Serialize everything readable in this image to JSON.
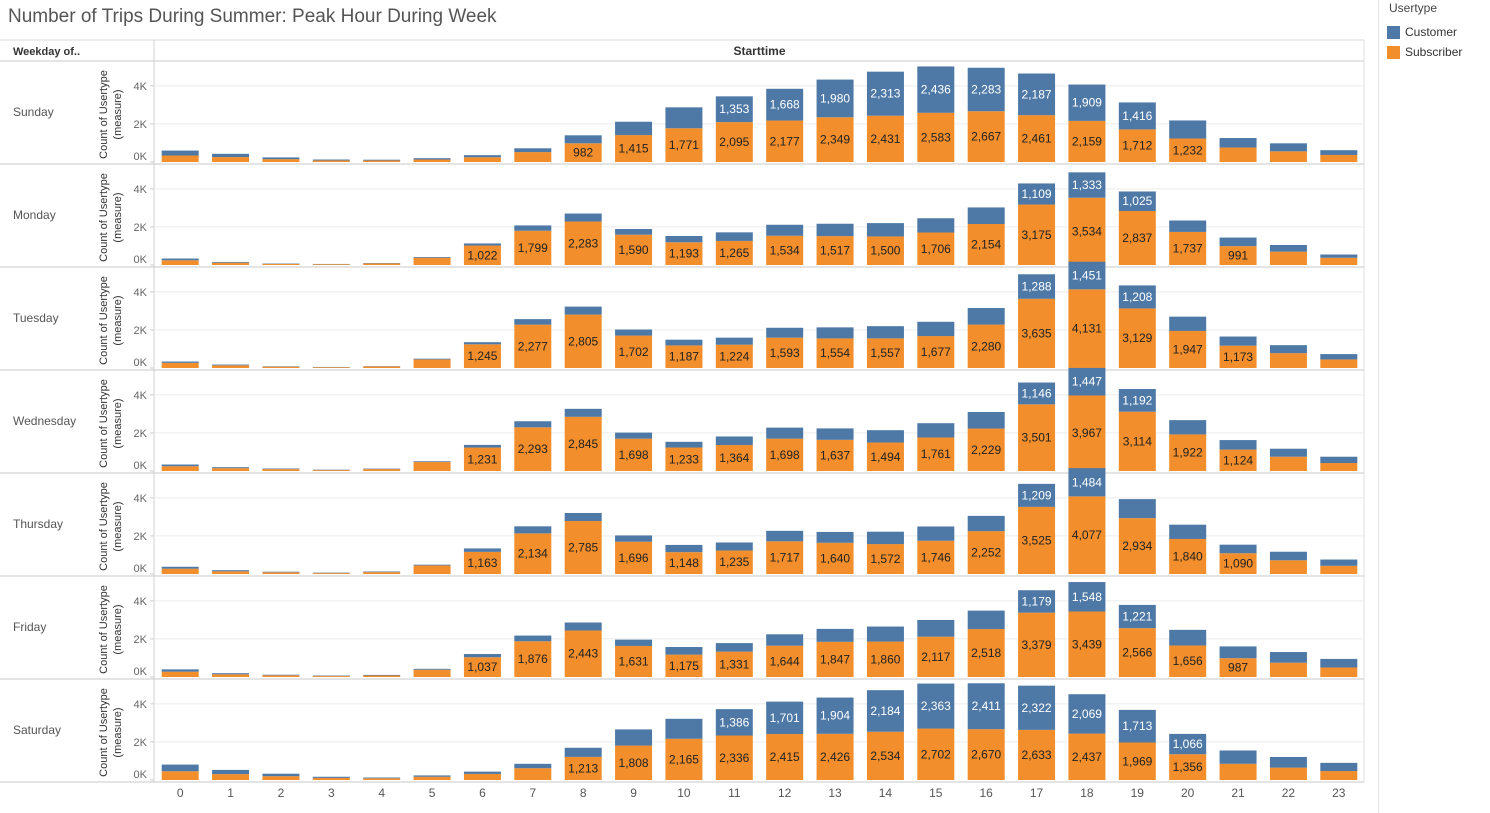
{
  "title": "Number of Trips During Summer: Peak Hour During Week",
  "legend": {
    "title": "Usertype",
    "items": [
      {
        "label": "Customer",
        "color": "#4e79a7"
      },
      {
        "label": "Subscriber",
        "color": "#f28e2b"
      }
    ]
  },
  "chart_data": {
    "type": "bar",
    "stacked": true,
    "row_header": "Weekday of..",
    "column_header": "Starttime",
    "ylabel": "Count of Usertype (measure)",
    "ylabel_lines": [
      "Count of Usertype",
      "(measure)"
    ],
    "y_ticks": [
      "0K",
      "2K",
      "4K"
    ],
    "ylim": [
      0,
      5200
    ],
    "categories": [
      "0",
      "1",
      "2",
      "3",
      "4",
      "5",
      "6",
      "7",
      "8",
      "9",
      "10",
      "11",
      "12",
      "13",
      "14",
      "15",
      "16",
      "17",
      "18",
      "19",
      "20",
      "21",
      "22",
      "23"
    ],
    "panels": [
      {
        "day": "Sunday",
        "series": [
          {
            "name": "Subscriber",
            "values": [
              340,
              260,
              150,
              80,
              80,
              130,
              250,
              520,
              982,
              1415,
              1771,
              2095,
              2177,
              2349,
              2431,
              2583,
              2667,
              2461,
              2159,
              1712,
              1232,
              760,
              560,
              370
            ]
          },
          {
            "name": "Customer",
            "values": [
              260,
              170,
              90,
              50,
              40,
              70,
              110,
              200,
              420,
              700,
              1100,
              1353,
              1668,
              1980,
              2313,
              2436,
              2283,
              2187,
              1909,
              1416,
              950,
              500,
              420,
              250
            ]
          }
        ],
        "labels": {
          "Subscriber": [
            "",
            "",
            "",
            "",
            "",
            "",
            "",
            "",
            "982",
            "1,415",
            "1,771",
            "2,095",
            "2,177",
            "2,349",
            "2,431",
            "2,583",
            "2,667",
            "2,461",
            "2,159",
            "1,712",
            "1,232",
            "",
            "",
            ""
          ],
          "Customer": [
            "",
            "",
            "",
            "",
            "",
            "",
            "",
            "",
            "",
            "",
            "",
            "1,353",
            "1,668",
            "1,980",
            "2,313",
            "2,436",
            "2,283",
            "2,187",
            "1,909",
            "1,416",
            "",
            "",
            "",
            ""
          ]
        }
      },
      {
        "day": "Monday",
        "series": [
          {
            "name": "Subscriber",
            "values": [
              250,
              120,
              60,
              40,
              80,
              380,
              1022,
              1799,
              2283,
              1590,
              1193,
              1265,
              1534,
              1517,
              1500,
              1706,
              2154,
              3175,
              3534,
              2837,
              1737,
              991,
              700,
              380
            ]
          },
          {
            "name": "Customer",
            "values": [
              90,
              40,
              20,
              15,
              20,
              40,
              110,
              280,
              420,
              300,
              330,
              450,
              580,
              650,
              700,
              750,
              870,
              1109,
              1333,
              1025,
              600,
              450,
              350,
              170
            ]
          }
        ],
        "labels": {
          "Subscriber": [
            "",
            "",
            "",
            "",
            "",
            "",
            "1,022",
            "1,799",
            "2,283",
            "1,590",
            "1,193",
            "1,265",
            "1,534",
            "1,517",
            "1,500",
            "1,706",
            "2,154",
            "3,175",
            "3,534",
            "2,837",
            "1,737",
            "991",
            "",
            ""
          ],
          "Customer": [
            "",
            "",
            "",
            "",
            "",
            "",
            "",
            "",
            "",
            "",
            "",
            "",
            "",
            "",
            "",
            "",
            "",
            "1,109",
            "1,333",
            "1,025",
            "",
            "",
            "",
            ""
          ]
        }
      },
      {
        "day": "Tuesday",
        "series": [
          {
            "name": "Subscriber",
            "values": [
              270,
              140,
              70,
              40,
              80,
              450,
              1245,
              2277,
              2805,
              1702,
              1187,
              1224,
              1593,
              1554,
              1557,
              1677,
              2280,
              3635,
              4131,
              3129,
              1947,
              1173,
              780,
              450
            ]
          },
          {
            "name": "Customer",
            "values": [
              70,
              40,
              20,
              15,
              15,
              40,
              110,
              290,
              420,
              320,
              300,
              370,
              520,
              580,
              640,
              750,
              870,
              1288,
              1451,
              1208,
              750,
              480,
              420,
              280
            ]
          }
        ],
        "labels": {
          "Subscriber": [
            "",
            "",
            "",
            "",
            "",
            "",
            "1,245",
            "2,277",
            "2,805",
            "1,702",
            "1,187",
            "1,224",
            "1,593",
            "1,554",
            "1,557",
            "1,677",
            "2,280",
            "3,635",
            "4,131",
            "3,129",
            "1,947",
            "1,173",
            "",
            ""
          ],
          "Customer": [
            "",
            "",
            "",
            "",
            "",
            "",
            "",
            "",
            "",
            "",
            "",
            "",
            "",
            "",
            "",
            "",
            "",
            "1,288",
            "1,451",
            "1,208",
            "",
            "",
            "",
            ""
          ]
        }
      },
      {
        "day": "Wednesday",
        "series": [
          {
            "name": "Subscriber",
            "values": [
              250,
              150,
              100,
              50,
              100,
              470,
              1231,
              2293,
              2845,
              1698,
              1233,
              1364,
              1698,
              1637,
              1494,
              1761,
              2229,
              3501,
              3967,
              3114,
              1922,
              1124,
              750,
              420
            ]
          },
          {
            "name": "Customer",
            "values": [
              90,
              50,
              30,
              20,
              25,
              40,
              140,
              320,
              420,
              320,
              300,
              450,
              580,
              600,
              650,
              750,
              870,
              1146,
              1447,
              1192,
              750,
              500,
              420,
              330
            ]
          }
        ],
        "labels": {
          "Subscriber": [
            "",
            "",
            "",
            "",
            "",
            "",
            "1,231",
            "2,293",
            "2,845",
            "1,698",
            "1,233",
            "1,364",
            "1,698",
            "1,637",
            "1,494",
            "1,761",
            "2,229",
            "3,501",
            "3,967",
            "3,114",
            "1,922",
            "1,124",
            "",
            ""
          ],
          "Customer": [
            "",
            "",
            "",
            "",
            "",
            "",
            "",
            "",
            "",
            "",
            "",
            "",
            "",
            "",
            "",
            "",
            "",
            "1,146",
            "1,447",
            "1,192",
            "",
            "",
            "",
            ""
          ]
        }
      },
      {
        "day": "Thursday",
        "series": [
          {
            "name": "Subscriber",
            "values": [
              280,
              140,
              90,
              50,
              100,
              450,
              1163,
              2134,
              2785,
              1696,
              1148,
              1235,
              1717,
              1640,
              1572,
              1746,
              2252,
              3525,
              4077,
              2934,
              1840,
              1090,
              720,
              430
            ]
          },
          {
            "name": "Customer",
            "values": [
              100,
              60,
              30,
              20,
              30,
              40,
              180,
              370,
              420,
              330,
              380,
              420,
              550,
              570,
              650,
              750,
              800,
              1209,
              1484,
              1000,
              750,
              450,
              450,
              330
            ]
          }
        ],
        "labels": {
          "Subscriber": [
            "",
            "",
            "",
            "",
            "",
            "",
            "1,163",
            "2,134",
            "2,785",
            "1,696",
            "1,148",
            "1,235",
            "1,717",
            "1,640",
            "1,572",
            "1,746",
            "2,252",
            "3,525",
            "4,077",
            "2,934",
            "1,840",
            "1,090",
            "",
            ""
          ],
          "Customer": [
            "",
            "",
            "",
            "",
            "",
            "",
            "",
            "",
            "",
            "",
            "",
            "",
            "",
            "",
            "",
            "",
            "",
            "1,209",
            "1,484",
            "",
            "",
            "",
            "",
            ""
          ]
        }
      },
      {
        "day": "Friday",
        "series": [
          {
            "name": "Subscriber",
            "values": [
              280,
              140,
              90,
              50,
              80,
              380,
              1037,
              1876,
              2443,
              1631,
              1175,
              1331,
              1644,
              1847,
              1860,
              2117,
              2518,
              3379,
              3439,
              2566,
              1656,
              987,
              750,
              500
            ]
          },
          {
            "name": "Customer",
            "values": [
              120,
              60,
              30,
              25,
              30,
              50,
              170,
              300,
              420,
              330,
              400,
              450,
              600,
              680,
              790,
              880,
              970,
              1179,
              1548,
              1221,
              820,
              620,
              560,
              450
            ]
          }
        ],
        "labels": {
          "Subscriber": [
            "",
            "",
            "",
            "",
            "",
            "",
            "1,037",
            "1,876",
            "2,443",
            "1,631",
            "1,175",
            "1,331",
            "1,644",
            "1,847",
            "1,860",
            "2,117",
            "2,518",
            "3,379",
            "3,439",
            "2,566",
            "1,656",
            "987",
            "",
            ""
          ],
          "Customer": [
            "",
            "",
            "",
            "",
            "",
            "",
            "",
            "",
            "",
            "",
            "",
            "",
            "",
            "",
            "",
            "",
            "",
            "1,179",
            "1,548",
            "1,221",
            "",
            "",
            "",
            ""
          ]
        }
      },
      {
        "day": "Saturday",
        "series": [
          {
            "name": "Subscriber",
            "values": [
              460,
              310,
              200,
              110,
              90,
              170,
              320,
              620,
              1213,
              1808,
              2165,
              2336,
              2415,
              2426,
              2534,
              2702,
              2670,
              2633,
              2437,
              1969,
              1356,
              850,
              650,
              470
            ]
          },
          {
            "name": "Customer",
            "values": [
              350,
              220,
              130,
              60,
              40,
              70,
              120,
              230,
              480,
              850,
              1050,
              1386,
              1701,
              1904,
              2184,
              2363,
              2411,
              2322,
              2069,
              1713,
              1066,
              700,
              560,
              430
            ]
          }
        ],
        "labels": {
          "Subscriber": [
            "",
            "",
            "",
            "",
            "",
            "",
            "",
            "",
            "1,213",
            "1,808",
            "2,165",
            "2,336",
            "2,415",
            "2,426",
            "2,534",
            "2,702",
            "2,670",
            "2,633",
            "2,437",
            "1,969",
            "1,356",
            "",
            "",
            ""
          ],
          "Customer": [
            "",
            "",
            "",
            "",
            "",
            "",
            "",
            "",
            "",
            "",
            "",
            "1,386",
            "1,701",
            "1,904",
            "2,184",
            "2,363",
            "2,411",
            "2,322",
            "2,069",
            "1,713",
            "1,066",
            "",
            "",
            ""
          ]
        }
      }
    ]
  }
}
